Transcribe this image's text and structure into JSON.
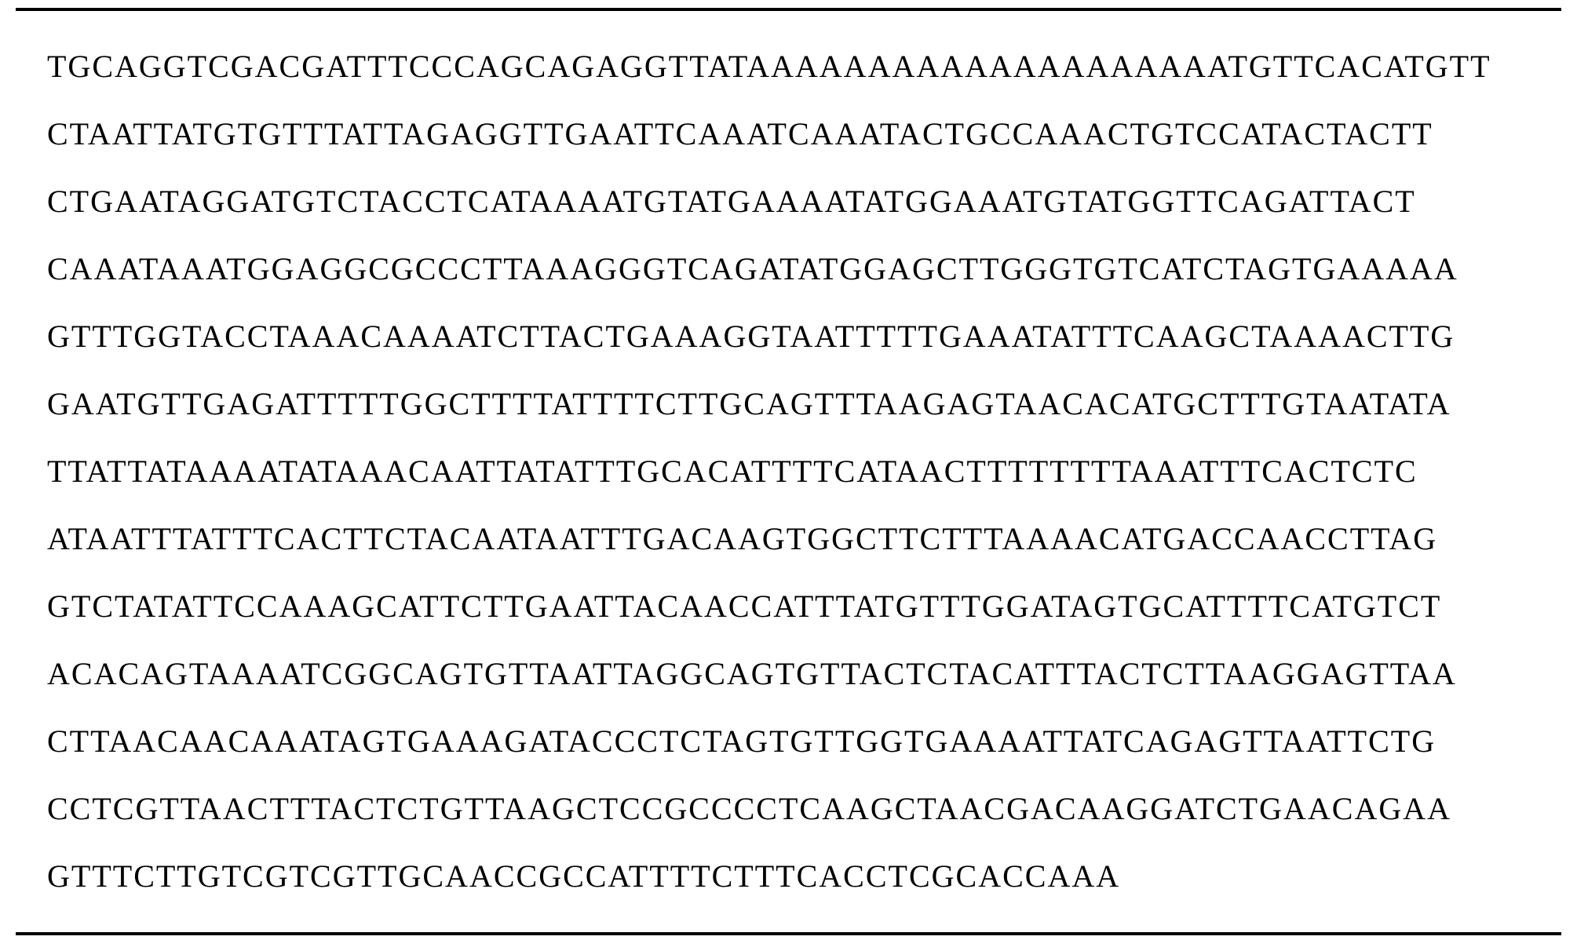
{
  "sequence": {
    "lines": [
      "TGCAGGTCGACGATTTCCCAGCAGAGGTTATAAAAAAAAAAAAAAAAAAAATGTTCACATGTT",
      "CTAATTATGTGTTTATTAGAGGTTGAATTCAAATCAAATACTGCCAAACTGTCCATACTACTT",
      "CTGAATAGGATGTCTACCTCATAAAATGTATGAAAATATGGAAATGTATGGTTCAGATTACT",
      "CAAATAAATGGAGGCGCCCTTAAAGGGTCAGATATGGAGCTTGGGTGTCATCTAGTGAAAAA",
      "GTTTGGTACCTAAACAAAATCTTACTGAAAGGTAATTTTTGAAATATTTCAAGCTAAAACTTG",
      "GAATGTTGAGATTTTTGGCTTTTATTTTCTTGCAGTTTAAGAGTAACACATGCTTTGTAATATA",
      "TTATTATAAAATATAAACAATTATATTTGCACATTTTCATAACTTTTTTTTAAATTTCACTCTC",
      "ATAATTTATTTCACTTCTACAATAATTTGACAAGTGGCTTCTTTAAAACATGACCAACCTTAG",
      "GTCTATATTCCAAAGCATTCTTGAATTACAACCATTTATGTTTGGATAGTGCATTTTCATGTCT",
      "ACACAGTAAAATCGGCAGTGTTAATTAGGCAGTGTTACTCTACATTTACTCTTAAGGAGTTAA",
      "CTTAACAACAAATAGTGAAAGATACCCTCTAGTGTTGGTGAAAATTATCAGAGTTAATTCTG",
      "CCTCGTTAACTTTACTCTGTTAAGCTCCGCCCCTCAAGCTAACGACAAGGATCTGAACAGAA",
      "GTTTCTTGTCGTCGTTGCAACCGCCATTTTCTTTCACCTCGCACCAAA"
    ]
  },
  "styling": {
    "background_color": "#ffffff",
    "text_color": "#000000",
    "border_color": "#000000",
    "border_width": 4,
    "font_family": "Times New Roman",
    "font_size": 40,
    "letter_spacing": 2,
    "line_height": 2.15
  }
}
